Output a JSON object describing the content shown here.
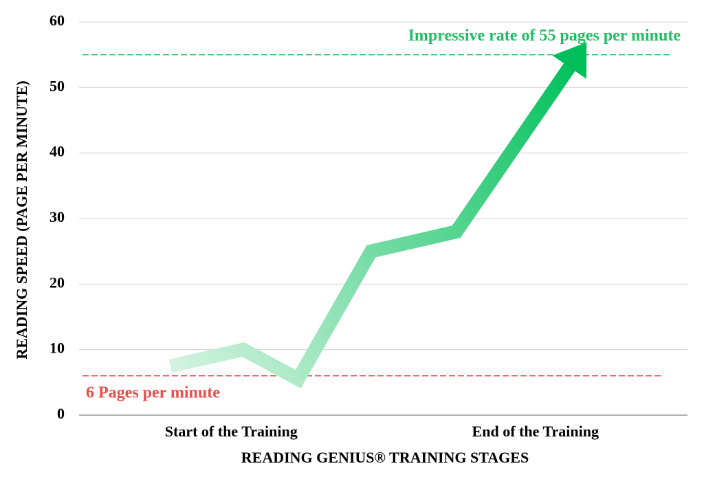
{
  "chart_data": {
    "type": "line",
    "x_label": "READING GENIUS® TRAINING STAGES",
    "y_label": "READING SPEED (PAGE PER MINUTE)",
    "x": [
      1.5,
      2.7,
      3.6,
      4.8,
      6.2,
      8.2
    ],
    "values": [
      7.5,
      10,
      5.5,
      25,
      28,
      55
    ],
    "color_start": "#d4f3e0",
    "color_end": "#00bf5a",
    "xlim": [
      0,
      10
    ],
    "xticks": [
      {
        "value": 2.5,
        "label": "Start of the Training"
      },
      {
        "value": 7.5,
        "label": "End of the Training"
      }
    ],
    "ylim": [
      0,
      60
    ],
    "yticks": [
      0,
      10,
      20,
      30,
      40,
      50,
      60
    ],
    "grid": true,
    "reference_lines": [
      {
        "value": 6,
        "label": "6 Pages per minute",
        "color": "#f04a4a"
      },
      {
        "value": 55,
        "label": "Impressive rate of 55 pages per minute",
        "color": "#1fc063"
      }
    ]
  }
}
